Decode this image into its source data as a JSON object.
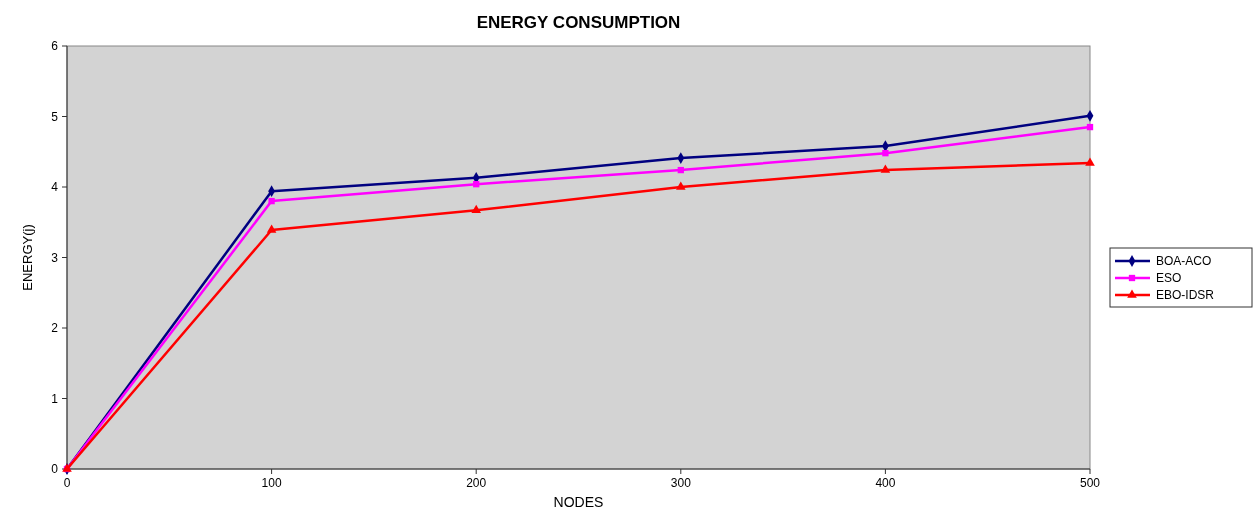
{
  "chart_data": {
    "type": "line",
    "title": "ENERGY CONSUMPTION",
    "xlabel": "NODES",
    "ylabel": "ENERGY(j)",
    "x": [
      0,
      100,
      200,
      300,
      400,
      500
    ],
    "xlim": [
      0,
      500
    ],
    "xticks": [
      0,
      100,
      200,
      300,
      400,
      500
    ],
    "ylim": [
      0,
      6
    ],
    "yticks": [
      0,
      1,
      2,
      3,
      4,
      5,
      6
    ],
    "grid": false,
    "legend": "right",
    "line_style": "solid",
    "series": [
      {
        "name": "BOA-ACO",
        "color": "#000080",
        "marker": "diamond",
        "values": [
          0,
          3.94,
          4.13,
          4.41,
          4.58,
          5.01
        ]
      },
      {
        "name": "ESO",
        "color": "#ff00ff",
        "marker": "square",
        "values": [
          0,
          3.8,
          4.04,
          4.24,
          4.48,
          4.85
        ]
      },
      {
        "name": "EBO-IDSR",
        "color": "#ff0000",
        "marker": "triangle",
        "values": [
          0,
          3.39,
          3.67,
          4.0,
          4.24,
          4.34
        ]
      }
    ]
  }
}
